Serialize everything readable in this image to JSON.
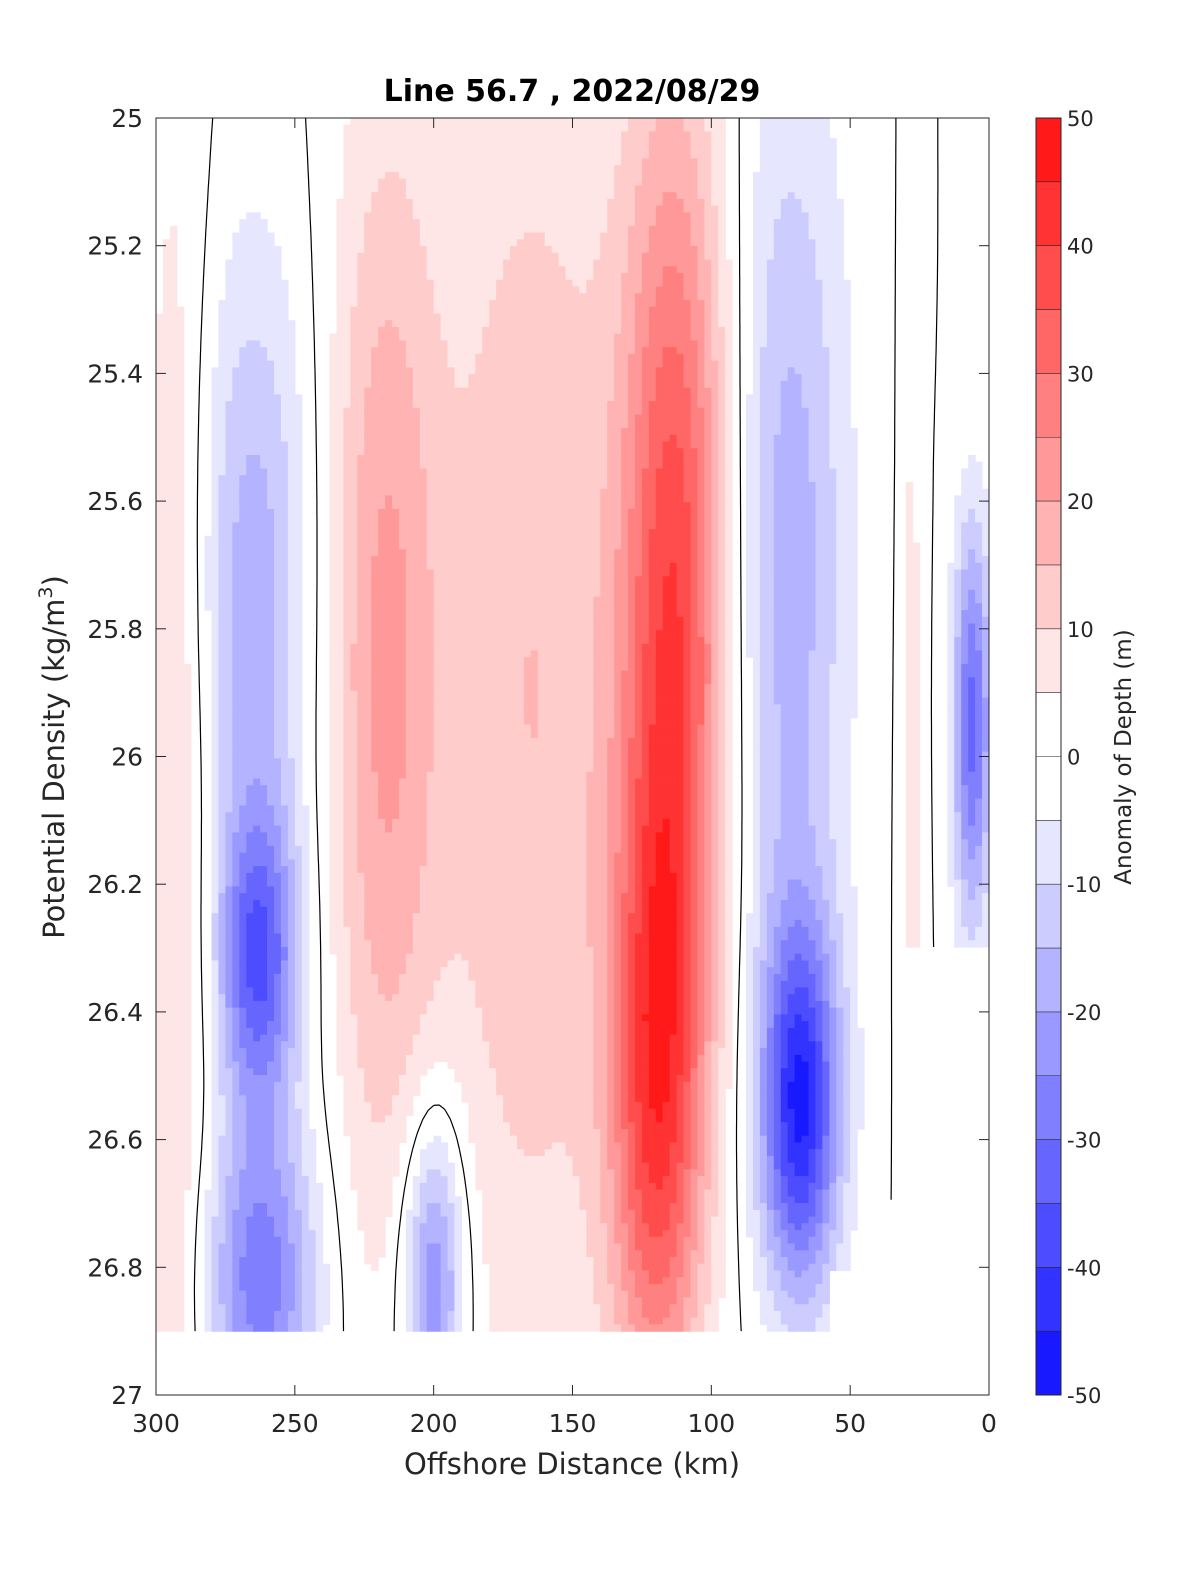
{
  "chart_data": {
    "type": "heatmap",
    "title": "Line 56.7 , 2022/08/29",
    "xlabel": "Offshore Distance (km)",
    "ylabel": "Potential Density (kg/m",
    "ylabel_sup": "3",
    "ylabel_close": ")",
    "colorbar_label": "Anomaly of Depth (m)",
    "xlim": [
      300,
      0
    ],
    "x_reversed": true,
    "ylim": [
      25,
      27
    ],
    "y_reversed": true,
    "xticks": [
      300,
      250,
      200,
      150,
      100,
      50,
      0
    ],
    "xtick_labels": [
      "300",
      "250",
      "200",
      "150",
      "100",
      "50",
      "0"
    ],
    "yticks": [
      25,
      25.2,
      25.4,
      25.6,
      25.8,
      26,
      26.2,
      26.4,
      26.6,
      26.8,
      27
    ],
    "ytick_labels": [
      "25",
      "25.2",
      "25.4",
      "25.6",
      "25.8",
      "26",
      "26.2",
      "26.4",
      "26.6",
      "26.8",
      "27"
    ],
    "colorbar_ticks": [
      50,
      40,
      30,
      20,
      10,
      0,
      -10,
      -20,
      -30,
      -40,
      -50
    ],
    "colorbar_tick_labels": [
      "50",
      "40",
      "30",
      "20",
      "10",
      "0",
      "-10",
      "-20",
      "-30",
      "-40",
      "-50"
    ],
    "clim": [
      -50,
      50
    ],
    "contour_step": 5,
    "colormap": "blue-white-red",
    "zero_contour_color": "#000000",
    "density_grid": [
      25.0,
      25.1,
      25.2,
      25.3,
      25.4,
      25.5,
      25.6,
      25.7,
      25.8,
      25.9,
      26.0,
      26.1,
      26.2,
      26.3,
      26.4,
      26.5,
      26.6,
      26.7,
      26.8,
      26.9
    ],
    "features": [
      {
        "name": "offshore warm band",
        "x": 293,
        "y": 26.2,
        "peak": 11,
        "sx": 9,
        "sy": 0.9
      },
      {
        "name": "offshore cool core upper",
        "x": 265,
        "y": 25.75,
        "peak": -18,
        "sx": 14,
        "sy": 0.38
      },
      {
        "name": "offshore cool core",
        "x": 263,
        "y": 26.32,
        "peak": -32,
        "sx": 10,
        "sy": 0.16
      },
      {
        "name": "offshore cool core lower",
        "x": 262,
        "y": 26.82,
        "peak": -28,
        "sx": 14,
        "sy": 0.18
      },
      {
        "name": "deep cool tongue",
        "x": 200,
        "y": 26.82,
        "peak": -28,
        "sx": 8,
        "sy": 0.18
      },
      {
        "name": "mid warm band",
        "x": 218,
        "y": 25.85,
        "peak": 20,
        "sx": 14,
        "sy": 0.6
      },
      {
        "name": "inner warm band",
        "x": 165,
        "y": 25.9,
        "peak": 15,
        "sx": 26,
        "sy": 0.8
      },
      {
        "name": "core warm jet",
        "x": 113,
        "y": 25.75,
        "peak": 37,
        "sx": 14,
        "sy": 0.55
      },
      {
        "name": "core warm jet lower",
        "x": 120,
        "y": 26.55,
        "peak": 32,
        "sx": 12,
        "sy": 0.35
      },
      {
        "name": "nearshore cool band",
        "x": 72,
        "y": 25.7,
        "peak": -18,
        "sx": 15,
        "sy": 0.55
      },
      {
        "name": "nearshore cool core",
        "x": 68,
        "y": 26.55,
        "peak": -42,
        "sx": 10,
        "sy": 0.2
      },
      {
        "name": "coastal cool edge",
        "x": 6,
        "y": 25.95,
        "peak": -32,
        "sx": 5,
        "sy": 0.22
      },
      {
        "name": "coastal warm sliver",
        "x": 28,
        "y": 26.1,
        "peak": 8,
        "sx": 3,
        "sy": 0.6
      }
    ]
  }
}
